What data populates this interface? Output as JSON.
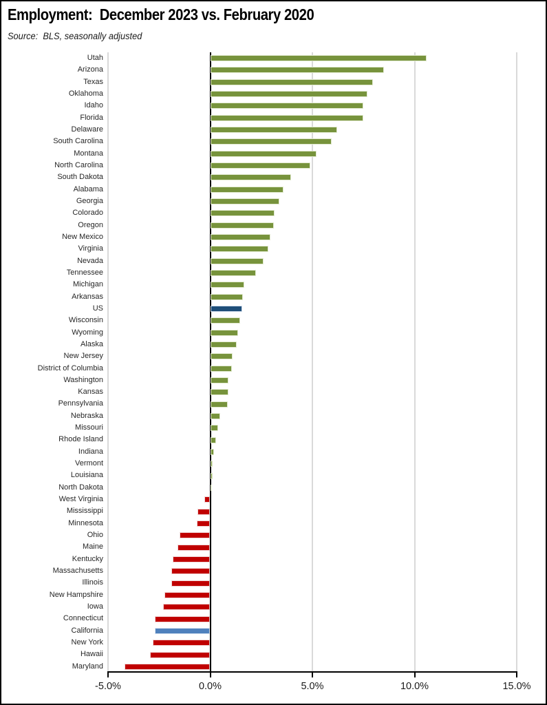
{
  "header": {
    "title": "Employment:  December 2023 vs. February 2020",
    "source_note": "Source:  BLS, seasonally adjusted"
  },
  "chart_data": {
    "type": "bar",
    "orientation": "horizontal",
    "title": "Employment:  December 2023 vs. February 2020",
    "subtitle": "Source:  BLS, seasonally adjusted",
    "value_unit": "percent_change",
    "xlim": [
      -5,
      15
    ],
    "x_ticks": [
      {
        "value": -5,
        "label": "-5.0%"
      },
      {
        "value": 0,
        "label": "0.0%"
      },
      {
        "value": 5,
        "label": "5.0%"
      },
      {
        "value": 10,
        "label": "10.0%"
      },
      {
        "value": 15,
        "label": "15.0%"
      }
    ],
    "gridline_values": [
      -5,
      5,
      10,
      15
    ],
    "grid": "vertical-only",
    "legend": "none",
    "palette": {
      "positive": {
        "fill": "#77933C",
        "border": "#E2EAD0"
      },
      "negative": {
        "fill": "#C00000",
        "border": "#F0D5D5"
      },
      "us": {
        "fill": "#1F4E79",
        "border": "#D2DEEC"
      },
      "california": {
        "fill": "#4F81BD",
        "border": "#DCE6F2"
      }
    },
    "axis_colors": {
      "gridline": "#D9D9D9",
      "axis": "#000000"
    },
    "bars": [
      {
        "label": "Utah",
        "value": 10.6
      },
      {
        "label": "Arizona",
        "value": 8.5
      },
      {
        "label": "Texas",
        "value": 7.95
      },
      {
        "label": "Oklahoma",
        "value": 7.7
      },
      {
        "label": "Idaho",
        "value": 7.5
      },
      {
        "label": "Florida",
        "value": 7.5
      },
      {
        "label": "Delaware",
        "value": 6.2
      },
      {
        "label": "South Carolina",
        "value": 5.95
      },
      {
        "label": "Montana",
        "value": 5.2
      },
      {
        "label": "North Carolina",
        "value": 4.9
      },
      {
        "label": "South Dakota",
        "value": 3.95
      },
      {
        "label": "Alabama",
        "value": 3.6
      },
      {
        "label": "Georgia",
        "value": 3.4
      },
      {
        "label": "Colorado",
        "value": 3.15
      },
      {
        "label": "Oregon",
        "value": 3.1
      },
      {
        "label": "New Mexico",
        "value": 2.95
      },
      {
        "label": "Virginia",
        "value": 2.85
      },
      {
        "label": "Nevada",
        "value": 2.6
      },
      {
        "label": "Tennessee",
        "value": 2.25
      },
      {
        "label": "Michigan",
        "value": 1.65
      },
      {
        "label": "Arkansas",
        "value": 1.6
      },
      {
        "label": "US",
        "value": 1.55,
        "color_key": "us"
      },
      {
        "label": "Wisconsin",
        "value": 1.45
      },
      {
        "label": "Wyoming",
        "value": 1.35
      },
      {
        "label": "Alaska",
        "value": 1.3
      },
      {
        "label": "New Jersey",
        "value": 1.1
      },
      {
        "label": "District of Columbia",
        "value": 1.05
      },
      {
        "label": "Washington",
        "value": 0.9
      },
      {
        "label": "Kansas",
        "value": 0.88
      },
      {
        "label": "Pennsylvania",
        "value": 0.85
      },
      {
        "label": "Nebraska",
        "value": 0.5
      },
      {
        "label": "Missouri",
        "value": 0.4
      },
      {
        "label": "Rhode Island",
        "value": 0.3
      },
      {
        "label": "Indiana",
        "value": 0.2
      },
      {
        "label": "Vermont",
        "value": 0.12
      },
      {
        "label": "Louisiana",
        "value": 0.12
      },
      {
        "label": "North Dakota",
        "value": 0.07
      },
      {
        "label": "West Virginia",
        "value": -0.3
      },
      {
        "label": "Mississippi",
        "value": -0.63
      },
      {
        "label": "Minnesota",
        "value": -0.65
      },
      {
        "label": "Ohio",
        "value": -1.5
      },
      {
        "label": "Maine",
        "value": -1.6
      },
      {
        "label": "Kentucky",
        "value": -1.85
      },
      {
        "label": "Massachusetts",
        "value": -1.9
      },
      {
        "label": "Illinois",
        "value": -1.9
      },
      {
        "label": "New Hampshire",
        "value": -2.25
      },
      {
        "label": "Iowa",
        "value": -2.3
      },
      {
        "label": "Connecticut",
        "value": -2.7
      },
      {
        "label": "California",
        "value": -2.7,
        "color_key": "california"
      },
      {
        "label": "New York",
        "value": -2.8
      },
      {
        "label": "Hawaii",
        "value": -2.95
      },
      {
        "label": "Maryland",
        "value": -4.2
      }
    ]
  }
}
